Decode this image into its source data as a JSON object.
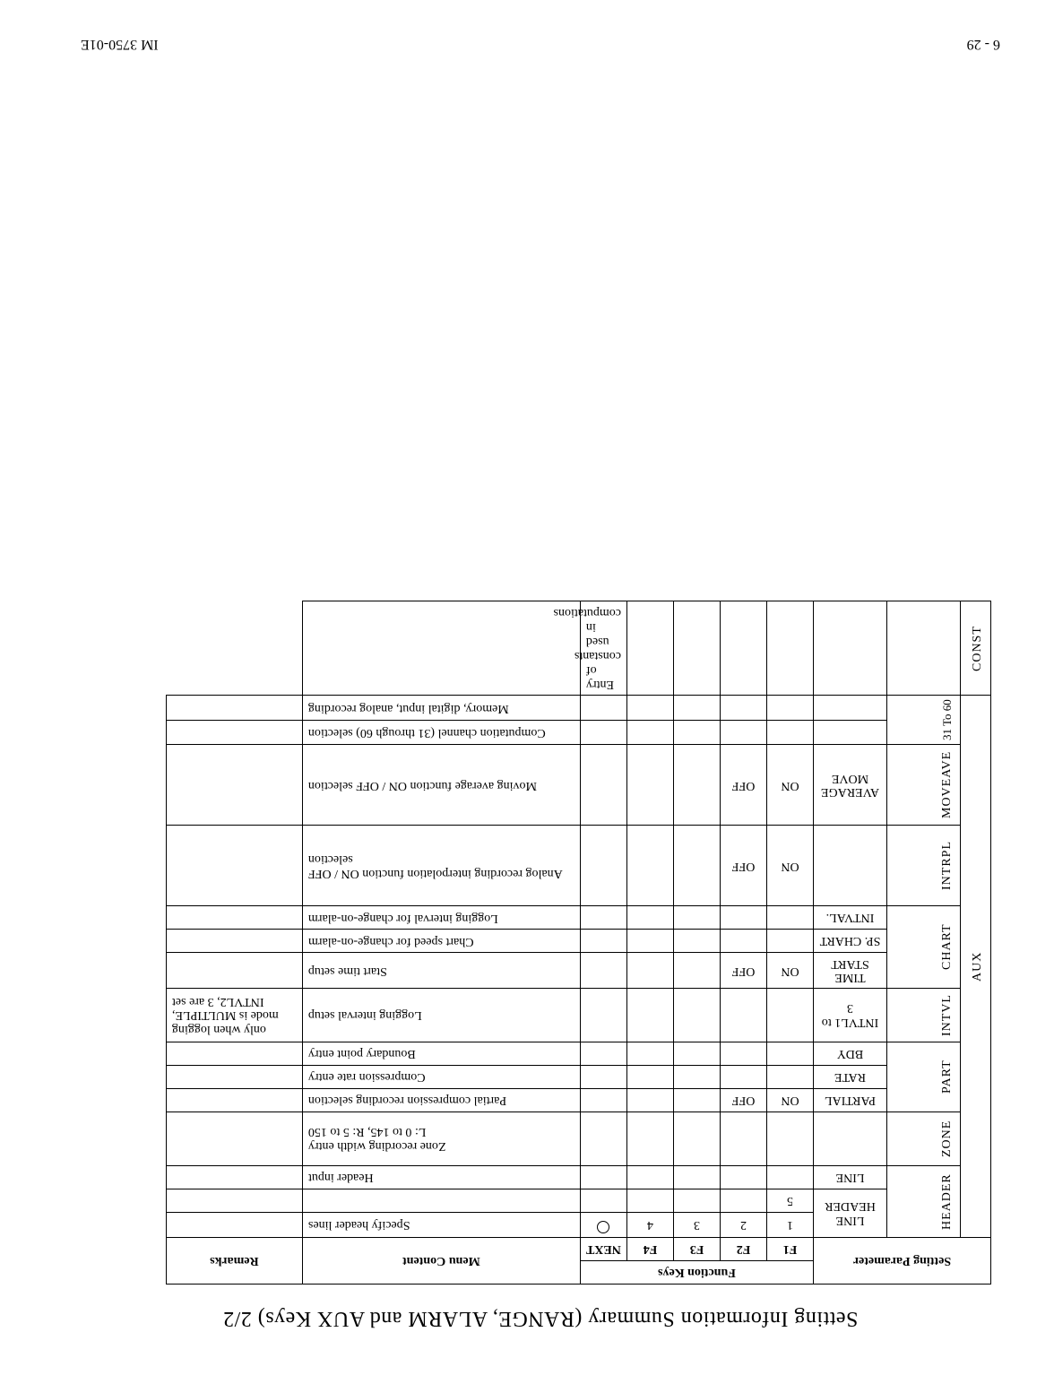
{
  "title": "Setting Information Summary (RANGE, ALARM and AUX Keys) 2/2",
  "page_number": "6 - 29",
  "doc_id": "IM 3750-01E",
  "header": {
    "setting_parameter": "Setting Parameter",
    "function_keys": "Function Keys",
    "f1": "F1",
    "f2": "F2",
    "f3": "F3",
    "f4": "F4",
    "next": "NEXT",
    "menu_content": "Menu Content",
    "remarks": "Remarks"
  },
  "aux_label": "AUX",
  "groups": {
    "header": "HEADER",
    "zone": "ZONE",
    "part": "PART",
    "intvl": "INTVL",
    "chart": "CHART",
    "intrpl": "INTRPL",
    "moveave": "MOVEAVE",
    "sel3160": "31 To 60",
    "const": "CONST"
  },
  "rows": {
    "header_lines_sub": "LINE HEADER",
    "header_lines_specify": {
      "f1": "1",
      "f2": "2",
      "f3": "3",
      "f4": "4",
      "next_circle": true,
      "menu": "Specify header lines"
    },
    "header_line_blank": {
      "f1": "5",
      "menu": ""
    },
    "header_input": {
      "sub": "LINE",
      "menu": "Header input"
    },
    "zone_width": {
      "menu_line1": "Zone recording width entry",
      "menu_line2": "L: 0 to 145, R: 5 to 150"
    },
    "part_partial": {
      "sub": "PARTIAL",
      "f1": "ON",
      "f2": "OFF",
      "menu": "Partial compression recording selection"
    },
    "part_rate": {
      "sub": "RATE",
      "menu": "Compression rate entry"
    },
    "part_bdy": {
      "sub": "BDY",
      "menu": "Boundary point entry"
    },
    "intvl": {
      "sub": "INTVL1 to 3",
      "menu": "Logging interval setup",
      "remark": "only when logging mode is MULTIPLE, INTVL2, 3 are set"
    },
    "chart_timestart": {
      "sub": "TIME START",
      "f1": "ON",
      "f2": "OFF",
      "menu": "Start time setup"
    },
    "chart_sp": {
      "sub": "SP. CHART",
      "menu": "Chart speed for change-on-alarm"
    },
    "chart_intval": {
      "sub": "INTVAL.",
      "menu": "Logging interval for change-on-alarm"
    },
    "intrpl": {
      "f1": "ON",
      "f2": "OFF",
      "menu": "Analog recording interpolation function ON / OFF selection"
    },
    "moveave": {
      "sub": "AVERAGE MOVE",
      "f1": "ON",
      "f2": "OFF",
      "menu": "Moving average function ON / OFF selection"
    },
    "sel3160": {
      "menu": "Computation channel (31 through 60) selection"
    },
    "sel3160b": {
      "menu": "Memory, digital input, analog recording"
    },
    "const": {
      "menu": "Entry of constants used in computations"
    }
  }
}
